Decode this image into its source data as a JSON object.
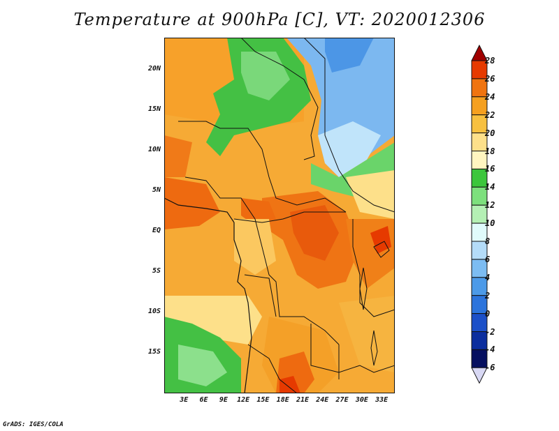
{
  "title": "Temperature at 900hPa [C], VT: 2020012306",
  "credit": "GrADS: IGES/COLA",
  "lat_labels": [
    "20N",
    "15N",
    "10N",
    "5N",
    "EQ",
    "5S",
    "10S",
    "15S"
  ],
  "lon_labels": [
    "3E",
    "6E",
    "9E",
    "12E",
    "15E",
    "18E",
    "21E",
    "24E",
    "27E",
    "30E",
    "33E"
  ],
  "colorbar": {
    "labels": [
      "28",
      "26",
      "24",
      "22",
      "20",
      "18",
      "16",
      "14",
      "12",
      "10",
      "8",
      "6",
      "4",
      "2",
      "0",
      "-2",
      "-4",
      "-6"
    ],
    "colors": [
      "#a00000",
      "#e63a00",
      "#f07410",
      "#f5a020",
      "#f7c040",
      "#fde08a",
      "#fff5c0",
      "#3cc63c",
      "#7de07d",
      "#b4f0b4",
      "#e0fbfb",
      "#b4dcf8",
      "#7cbcf2",
      "#4c9ae8",
      "#2c74dc",
      "#1c50c8",
      "#0c2e9e",
      "#061060",
      "#d8d8f4"
    ]
  },
  "chart_data": {
    "type": "heatmap",
    "variable": "Temperature at 900hPa",
    "units": "C",
    "valid_time": "2020012306",
    "lon_range": [
      0,
      35
    ],
    "lat_range": [
      -20,
      24
    ],
    "levels": [
      -6,
      -4,
      -2,
      0,
      2,
      4,
      6,
      8,
      10,
      12,
      14,
      16,
      18,
      20,
      22,
      24,
      26,
      28
    ]
  }
}
